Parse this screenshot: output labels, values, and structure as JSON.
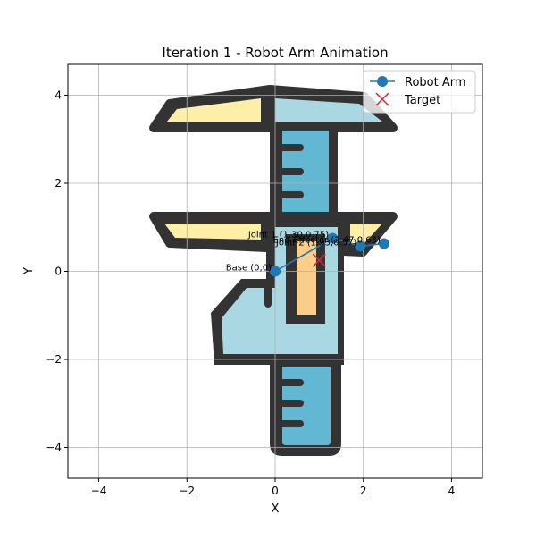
{
  "chart_data": {
    "type": "line",
    "title": "Iteration 1 - Robot Arm Animation",
    "xlabel": "X",
    "ylabel": "Y",
    "xlim": [
      -4.7,
      4.7
    ],
    "ylim": [
      -4.7,
      4.7
    ],
    "xticks": [
      -4,
      -2,
      0,
      2,
      4
    ],
    "yticks": [
      -4,
      -2,
      0,
      2,
      4
    ],
    "x_tick_labels": [
      "−4",
      "−2",
      "0",
      "2",
      "4"
    ],
    "y_tick_labels": [
      "−4",
      "−2",
      "0",
      "2",
      "4"
    ],
    "grid": true,
    "legend_position": "top-right",
    "legend": [
      {
        "name": "Robot Arm",
        "marker": "circle-line",
        "color": "#1f77b4"
      },
      {
        "name": "Target",
        "marker": "x",
        "color": "#d62728"
      }
    ],
    "arm": {
      "name": "Robot Arm",
      "color": "#1f77b4",
      "points": [
        {
          "x": 0,
          "y": 0,
          "label": "Base (0,0)"
        },
        {
          "x": 1.3,
          "y": 0.75,
          "label": "Joint 1 (1.30,0.75)"
        },
        {
          "x": 1.93,
          "y": 0.57,
          "label": "Joint 2 (1.93,0.57)"
        },
        {
          "x": 2.47,
          "y": 0.63,
          "label": "End-Effector (2.47,0.63)"
        }
      ]
    },
    "target": {
      "name": "Target",
      "x": 1.0,
      "y": 0.25,
      "color": "#d62728"
    },
    "background_image": {
      "description_icon": "vernier-caliper-icon",
      "colors": {
        "outline": "#333333",
        "light_blue": "#a9d8e2",
        "mid_blue": "#62b8d2",
        "yellow": "#fdeea8",
        "orange": "#f9ce8a"
      }
    }
  }
}
